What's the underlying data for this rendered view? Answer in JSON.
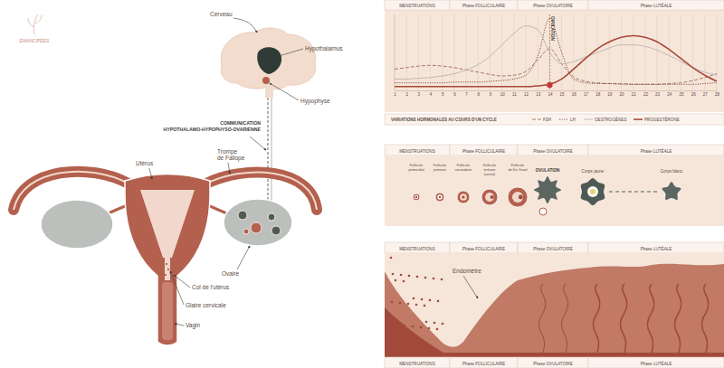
{
  "brand": "ÉMANCIPÉES",
  "anatomy": {
    "brain": "Cerveau",
    "hypothalamus": "Hypothalamus",
    "pituitary": "Hypophyse",
    "communication": [
      "COMMUNICATION",
      "HYPOTHALAMO-HYPOPHYSO-OVARIENNE"
    ],
    "uterus": "Utérus",
    "tube": [
      "Trompe",
      "de Fallope"
    ],
    "ovary": "Ovaire",
    "cervix": "Col de l'utérus",
    "mucus": "Glaire cervicale",
    "vagina": "Vagin"
  },
  "phases": [
    "MENSTRUATIONS",
    "Phase FOLLICULAIRE",
    "Phase OVULATOIRE",
    "Phase LUTÉALE"
  ],
  "follicles": {
    "stages": [
      [
        "Follicule",
        "primordial"
      ],
      [
        "Follicule",
        "primaire"
      ],
      [
        "Follicule",
        "secondaire"
      ],
      [
        "Follicule",
        "tertiaire",
        "(antral)"
      ],
      [
        "Follicule",
        "de De Graaf"
      ]
    ],
    "ovulation": "OVULATION",
    "corpus_luteum": "Corps jaune",
    "corpus_albicans": "Corps blanc"
  },
  "endometrium": {
    "label": "Endomètre"
  },
  "chart_data": {
    "type": "line",
    "title": "VARIATIONS HORMONALES AU COURS D'UN CYCLE",
    "x": [
      1,
      2,
      3,
      4,
      5,
      6,
      7,
      8,
      9,
      10,
      11,
      12,
      13,
      14,
      15,
      16,
      17,
      18,
      19,
      20,
      21,
      22,
      23,
      24,
      25,
      26,
      27,
      28
    ],
    "xlim": [
      1,
      28
    ],
    "xticks": [
      1,
      2,
      3,
      4,
      5,
      6,
      7,
      8,
      9,
      10,
      11,
      12,
      13,
      14,
      15,
      16,
      17,
      18,
      19,
      20,
      21,
      22,
      23,
      24,
      25,
      26,
      27,
      28
    ],
    "ylim": [
      0,
      100
    ],
    "tick_labels": "x",
    "grid": true,
    "legend": "bottom",
    "annotations": [
      {
        "text": "OVULATION",
        "x": 14
      }
    ],
    "series": [
      {
        "name": "FSH",
        "color": "#9b6b5e",
        "line_style": "dashed",
        "values": [
          28,
          30,
          32,
          33,
          32,
          30,
          27,
          24,
          21,
          19,
          20,
          25,
          40,
          55,
          35,
          18,
          12,
          10,
          9,
          9,
          8,
          8,
          8,
          9,
          10,
          13,
          17,
          22
        ]
      },
      {
        "name": "LH",
        "color": "#7a3b30",
        "line_style": "dotted",
        "values": [
          10,
          10,
          10,
          10,
          10,
          11,
          11,
          11,
          12,
          13,
          15,
          20,
          45,
          95,
          50,
          15,
          10,
          9,
          9,
          8,
          8,
          8,
          8,
          8,
          8,
          8,
          9,
          10
        ]
      },
      {
        "name": "OESTROGÈNES",
        "color": "#b9b3ae",
        "line_style": "solid",
        "values": [
          15,
          15,
          16,
          17,
          19,
          22,
          27,
          34,
          45,
          60,
          75,
          85,
          80,
          50,
          35,
          38,
          44,
          50,
          56,
          60,
          60,
          58,
          53,
          46,
          38,
          30,
          24,
          20
        ]
      },
      {
        "name": "PROGESTÉRONE",
        "color": "#a8493a",
        "line_style": "solid",
        "values": [
          5,
          5,
          5,
          5,
          5,
          5,
          5,
          5,
          5,
          5,
          5,
          5,
          6,
          8,
          15,
          28,
          42,
          55,
          64,
          70,
          72,
          70,
          64,
          54,
          42,
          30,
          20,
          12
        ]
      }
    ]
  }
}
